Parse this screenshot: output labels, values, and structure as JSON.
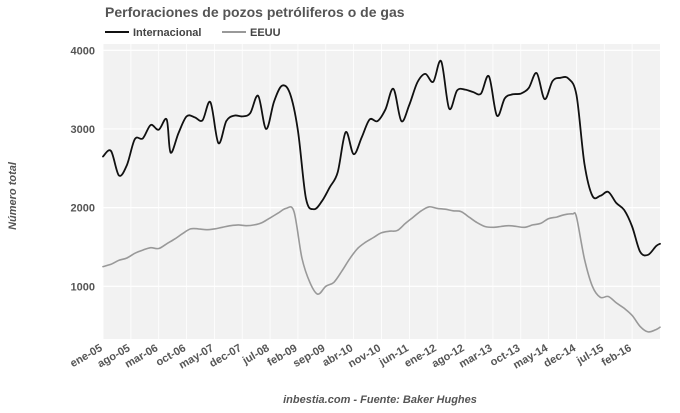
{
  "chart_data": {
    "type": "line",
    "title": "Perforaciones de pozos petróliferos o de gas",
    "ylabel": "Número total",
    "xlabel": "",
    "source": "inbestia.com - Fuente: Baker Hughes",
    "legend_position": "top-left",
    "grid": true,
    "ylim": [
      330,
      4080
    ],
    "yticks": [
      1000,
      2000,
      3000,
      4000
    ],
    "x_range": [
      "2005-01",
      "2016-09"
    ],
    "xticks": [
      "ene-05",
      "ago-05",
      "mar-06",
      "oct-06",
      "may-07",
      "dec-07",
      "jul-08",
      "feb-09",
      "sep-09",
      "abr-10",
      "nov-10",
      "jun-11",
      "ene-12",
      "ago-12",
      "mar-13",
      "oct-13",
      "may-14",
      "dec-14",
      "jul-15",
      "feb-16"
    ],
    "series": [
      {
        "name": "Internacional",
        "color": "#111111",
        "points": [
          [
            "2005-01",
            2650
          ],
          [
            "2005-03",
            2720
          ],
          [
            "2005-05",
            2410
          ],
          [
            "2005-07",
            2540
          ],
          [
            "2005-09",
            2870
          ],
          [
            "2005-11",
            2880
          ],
          [
            "2006-01",
            3050
          ],
          [
            "2006-03",
            2990
          ],
          [
            "2006-05",
            3120
          ],
          [
            "2006-06",
            2700
          ],
          [
            "2006-08",
            2950
          ],
          [
            "2006-10",
            3160
          ],
          [
            "2006-12",
            3150
          ],
          [
            "2007-02",
            3110
          ],
          [
            "2007-04",
            3340
          ],
          [
            "2007-06",
            2820
          ],
          [
            "2007-08",
            3100
          ],
          [
            "2007-10",
            3170
          ],
          [
            "2007-12",
            3160
          ],
          [
            "2008-02",
            3200
          ],
          [
            "2008-04",
            3420
          ],
          [
            "2008-06",
            3000
          ],
          [
            "2008-08",
            3350
          ],
          [
            "2008-10",
            3550
          ],
          [
            "2008-12",
            3450
          ],
          [
            "2009-02",
            2980
          ],
          [
            "2009-04",
            2120
          ],
          [
            "2009-06",
            1980
          ],
          [
            "2009-08",
            2080
          ],
          [
            "2009-10",
            2260
          ],
          [
            "2009-12",
            2450
          ],
          [
            "2010-02",
            2960
          ],
          [
            "2010-04",
            2680
          ],
          [
            "2010-06",
            2890
          ],
          [
            "2010-08",
            3120
          ],
          [
            "2010-10",
            3100
          ],
          [
            "2010-12",
            3250
          ],
          [
            "2011-02",
            3510
          ],
          [
            "2011-04",
            3100
          ],
          [
            "2011-06",
            3310
          ],
          [
            "2011-08",
            3590
          ],
          [
            "2011-10",
            3700
          ],
          [
            "2011-12",
            3600
          ],
          [
            "2012-02",
            3860
          ],
          [
            "2012-04",
            3260
          ],
          [
            "2012-06",
            3490
          ],
          [
            "2012-08",
            3500
          ],
          [
            "2012-10",
            3470
          ],
          [
            "2012-12",
            3450
          ],
          [
            "2013-02",
            3670
          ],
          [
            "2013-04",
            3170
          ],
          [
            "2013-06",
            3390
          ],
          [
            "2013-08",
            3440
          ],
          [
            "2013-10",
            3450
          ],
          [
            "2013-12",
            3520
          ],
          [
            "2014-02",
            3710
          ],
          [
            "2014-04",
            3380
          ],
          [
            "2014-06",
            3610
          ],
          [
            "2014-08",
            3650
          ],
          [
            "2014-10",
            3640
          ],
          [
            "2014-12",
            3430
          ],
          [
            "2015-02",
            2560
          ],
          [
            "2015-04",
            2150
          ],
          [
            "2015-06",
            2150
          ],
          [
            "2015-08",
            2200
          ],
          [
            "2015-10",
            2060
          ],
          [
            "2015-12",
            1970
          ],
          [
            "2016-02",
            1760
          ],
          [
            "2016-04",
            1440
          ],
          [
            "2016-06",
            1400
          ],
          [
            "2016-08",
            1510
          ],
          [
            "2016-09",
            1540
          ]
        ]
      },
      {
        "name": "EEUU",
        "color": "#999999",
        "points": [
          [
            "2005-01",
            1250
          ],
          [
            "2005-03",
            1280
          ],
          [
            "2005-05",
            1330
          ],
          [
            "2005-07",
            1360
          ],
          [
            "2005-09",
            1420
          ],
          [
            "2005-11",
            1460
          ],
          [
            "2006-01",
            1490
          ],
          [
            "2006-03",
            1480
          ],
          [
            "2006-05",
            1540
          ],
          [
            "2006-07",
            1600
          ],
          [
            "2006-09",
            1670
          ],
          [
            "2006-11",
            1730
          ],
          [
            "2007-01",
            1730
          ],
          [
            "2007-03",
            1720
          ],
          [
            "2007-05",
            1730
          ],
          [
            "2007-07",
            1750
          ],
          [
            "2007-09",
            1770
          ],
          [
            "2007-11",
            1780
          ],
          [
            "2008-01",
            1770
          ],
          [
            "2008-03",
            1780
          ],
          [
            "2008-05",
            1810
          ],
          [
            "2008-07",
            1870
          ],
          [
            "2008-09",
            1930
          ],
          [
            "2008-11",
            1990
          ],
          [
            "2009-01",
            1950
          ],
          [
            "2009-03",
            1360
          ],
          [
            "2009-05",
            1050
          ],
          [
            "2009-07",
            900
          ],
          [
            "2009-09",
            1000
          ],
          [
            "2009-11",
            1050
          ],
          [
            "2010-01",
            1190
          ],
          [
            "2010-03",
            1350
          ],
          [
            "2010-05",
            1480
          ],
          [
            "2010-07",
            1560
          ],
          [
            "2010-09",
            1620
          ],
          [
            "2010-11",
            1680
          ],
          [
            "2011-01",
            1700
          ],
          [
            "2011-03",
            1710
          ],
          [
            "2011-05",
            1800
          ],
          [
            "2011-07",
            1880
          ],
          [
            "2011-09",
            1960
          ],
          [
            "2011-11",
            2010
          ],
          [
            "2012-01",
            1990
          ],
          [
            "2012-03",
            1980
          ],
          [
            "2012-05",
            1960
          ],
          [
            "2012-07",
            1950
          ],
          [
            "2012-09",
            1880
          ],
          [
            "2012-11",
            1810
          ],
          [
            "2013-01",
            1760
          ],
          [
            "2013-03",
            1750
          ],
          [
            "2013-05",
            1760
          ],
          [
            "2013-07",
            1770
          ],
          [
            "2013-09",
            1760
          ],
          [
            "2013-11",
            1750
          ],
          [
            "2014-01",
            1780
          ],
          [
            "2014-03",
            1800
          ],
          [
            "2014-05",
            1860
          ],
          [
            "2014-07",
            1880
          ],
          [
            "2014-09",
            1910
          ],
          [
            "2014-11",
            1920
          ],
          [
            "2014-12",
            1880
          ],
          [
            "2015-02",
            1350
          ],
          [
            "2015-04",
            1000
          ],
          [
            "2015-06",
            860
          ],
          [
            "2015-08",
            870
          ],
          [
            "2015-10",
            790
          ],
          [
            "2015-12",
            720
          ],
          [
            "2016-02",
            630
          ],
          [
            "2016-04",
            490
          ],
          [
            "2016-06",
            420
          ],
          [
            "2016-08",
            450
          ],
          [
            "2016-09",
            480
          ]
        ]
      }
    ]
  }
}
